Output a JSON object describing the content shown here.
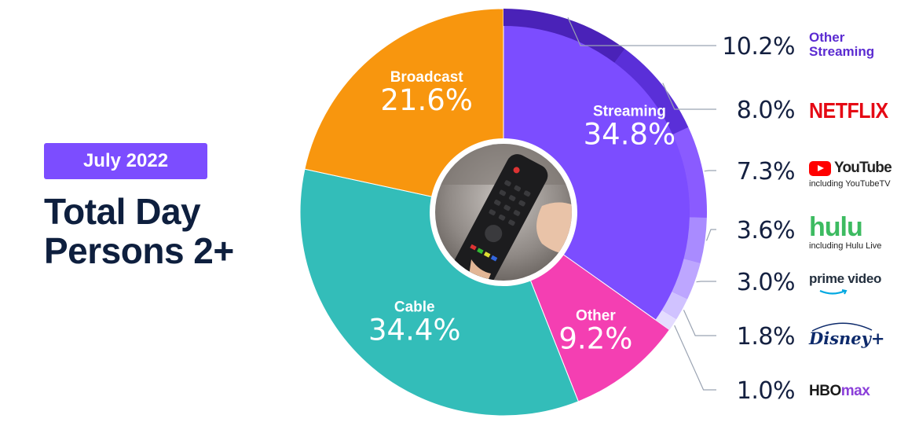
{
  "header": {
    "badge": "July 2022",
    "title_line1": "Total Day",
    "title_line2": "Persons 2+"
  },
  "colors": {
    "streaming": "#7c4dff",
    "other": "#f43fb2",
    "cable": "#33bdb9",
    "broadcast": "#f8960e",
    "other_streaming": "#4a22b8",
    "netflix": "#5a2fd8",
    "youtube": "#8a5bff",
    "hulu": "#a98bff",
    "prime": "#bda6ff",
    "disney": "#d0c2ff",
    "hbo": "#e4dcff"
  },
  "chart_data": {
    "type": "pie",
    "slices": [
      {
        "name": "Streaming",
        "value": "34.8%",
        "share": 34.8
      },
      {
        "name": "Other",
        "value": "9.2%",
        "share": 9.2
      },
      {
        "name": "Cable",
        "value": "34.4%",
        "share": 34.4
      },
      {
        "name": "Broadcast",
        "value": "21.6%",
        "share": 21.6
      }
    ],
    "streaming_breakdown": [
      {
        "name": "Other Streaming",
        "value": "10.2%",
        "share": 10.2
      },
      {
        "name": "NETFLIX",
        "value": "8.0%",
        "share": 8.0
      },
      {
        "name": "YouTube including YouTubeTV",
        "value": "7.3%",
        "share": 7.3
      },
      {
        "name": "hulu including Hulu Live",
        "value": "3.6%",
        "share": 3.6
      },
      {
        "name": "prime video",
        "value": "3.0%",
        "share": 3.0
      },
      {
        "name": "Disney+",
        "value": "1.8%",
        "share": 1.8
      },
      {
        "name": "HBO max",
        "value": "1.0%",
        "share": 1.0
      }
    ]
  },
  "legend": {
    "other_streaming_l1": "Other",
    "other_streaming_l2": "Streaming",
    "netflix": "NETFLIX",
    "youtube": "YouTube",
    "youtube_sub": "including YouTubeTV",
    "hulu": "hulu",
    "hulu_sub": "including Hulu Live",
    "prime": "prime video",
    "disney": "Disney+",
    "hbo": "HBO",
    "hbo_max": "max"
  }
}
